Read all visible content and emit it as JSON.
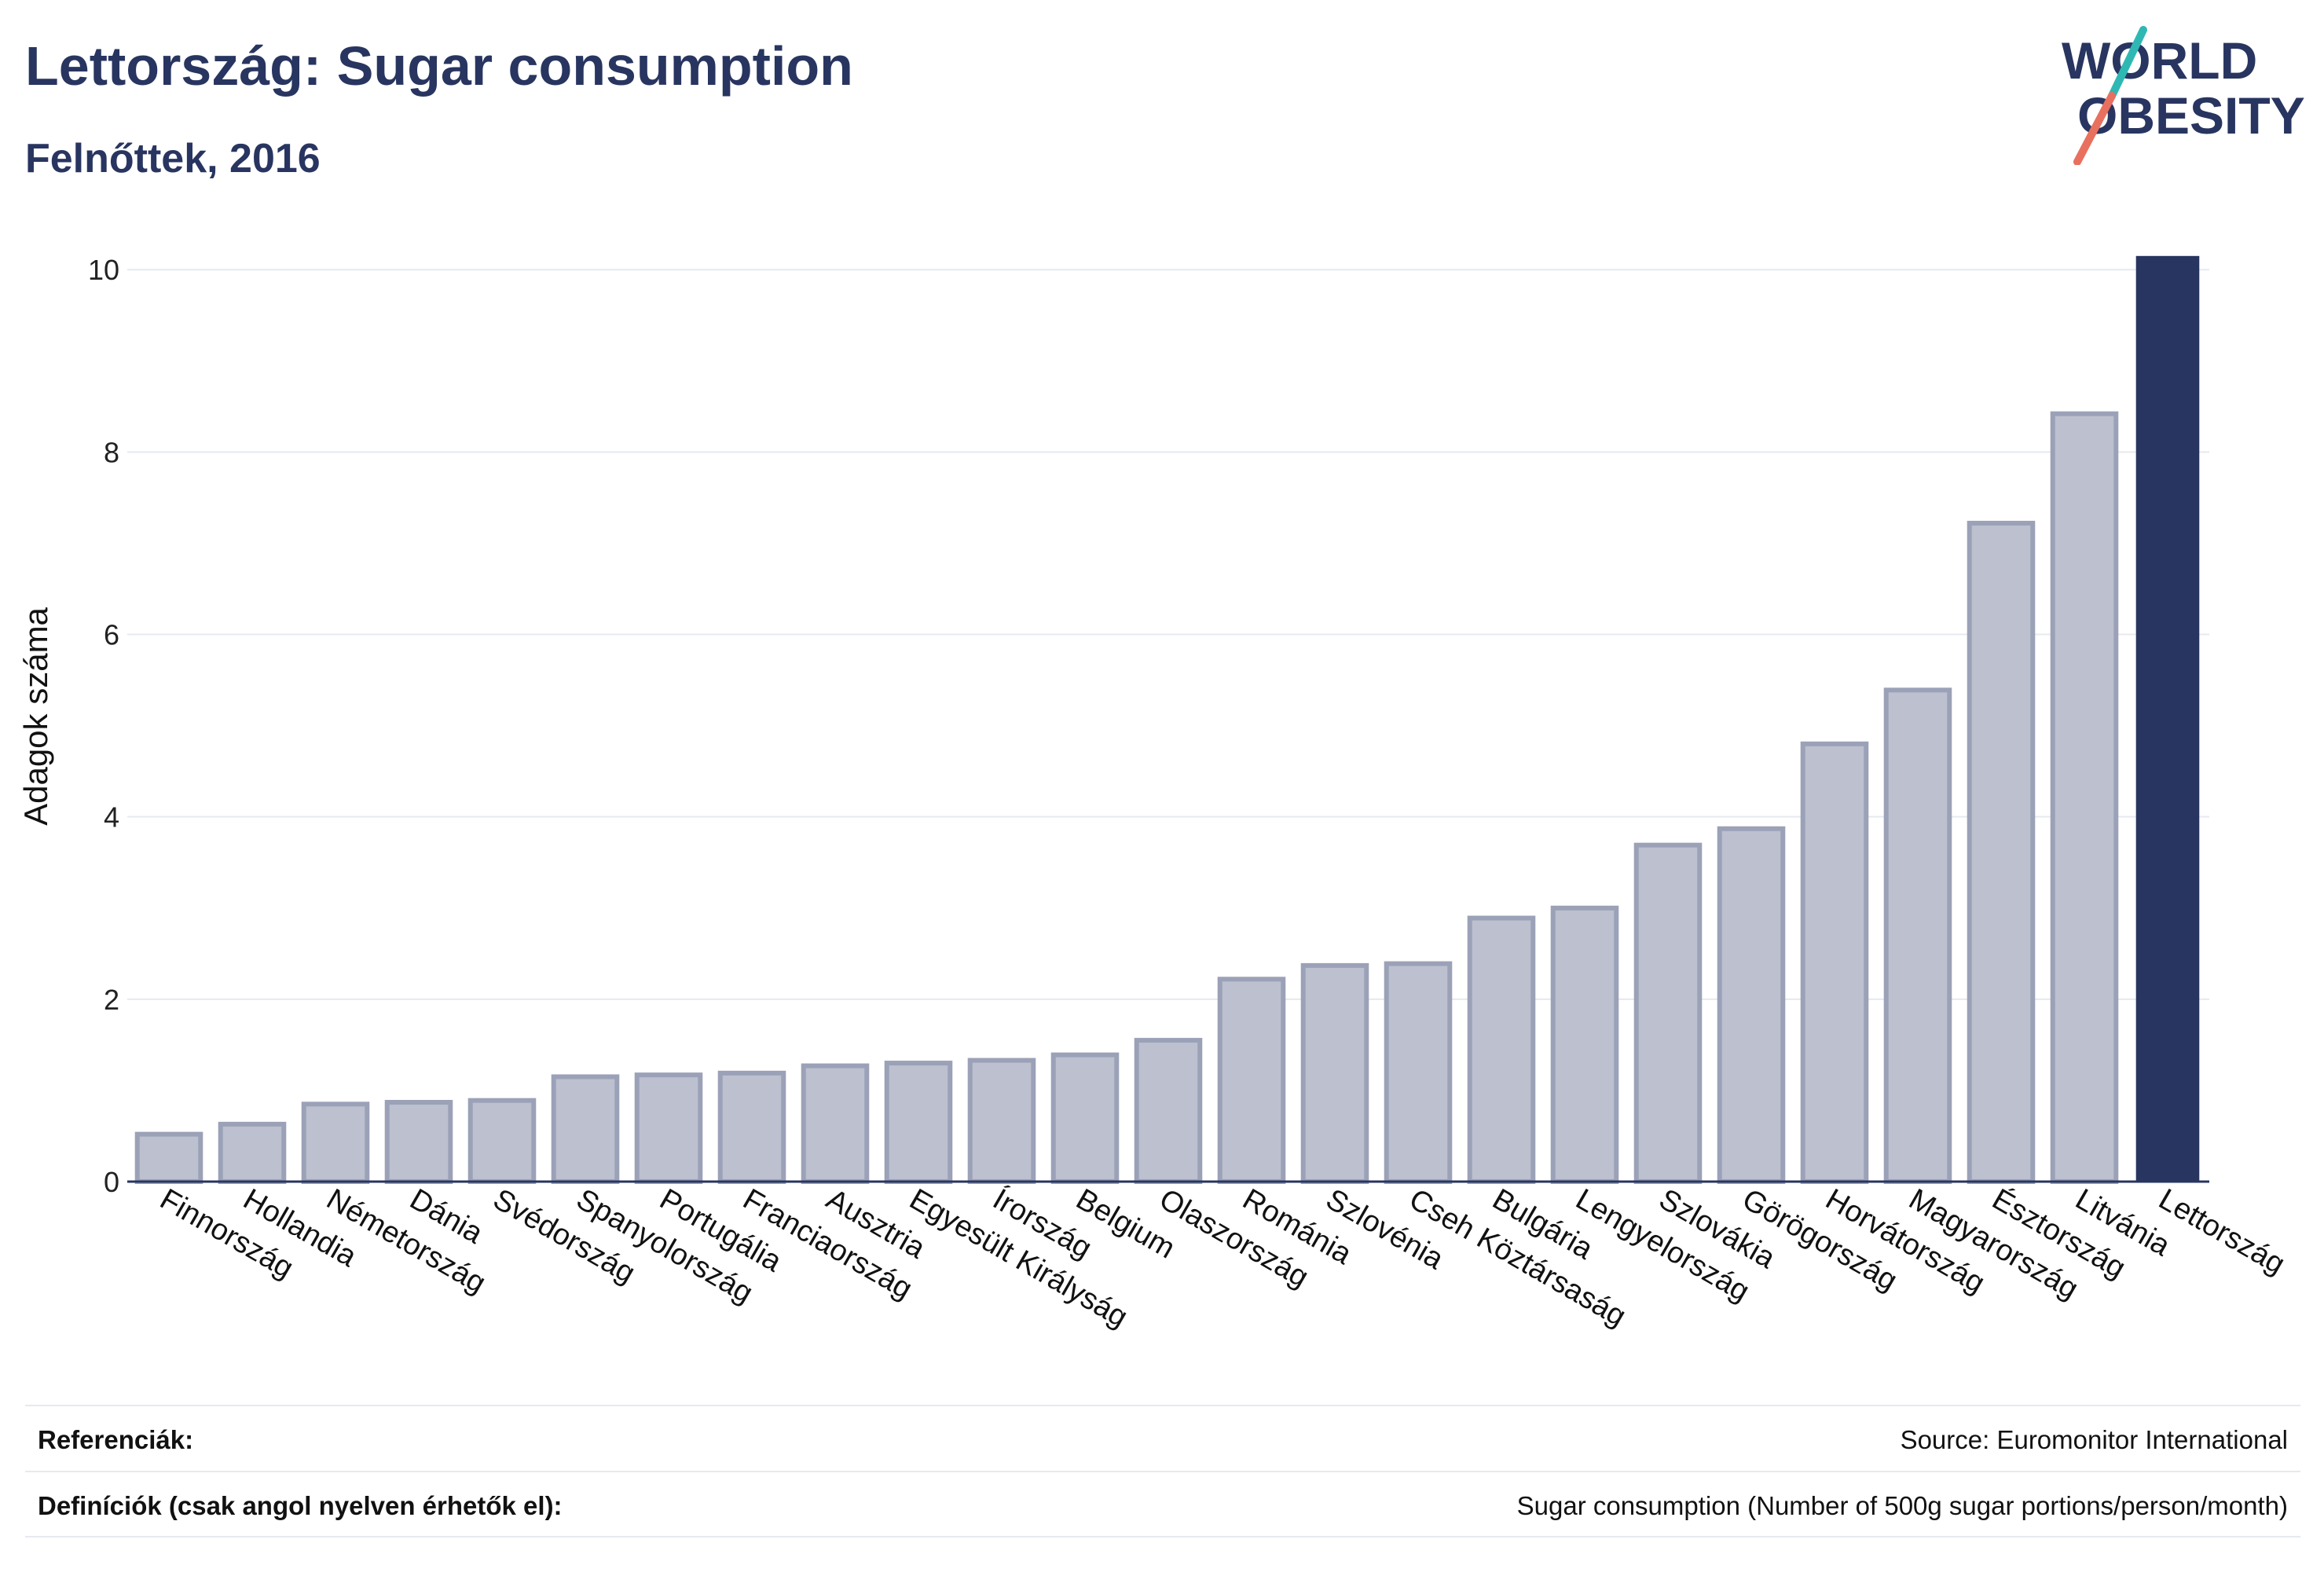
{
  "header": {
    "title": "Lettország: Sugar consumption",
    "subtitle": "Felnőttek, 2016"
  },
  "logo": {
    "line1": "WORLD",
    "line2": "OBESITY",
    "icon": "world-obesity-logo"
  },
  "colors": {
    "accent": "#283560",
    "bar_fill": "#bcc0cf",
    "bar_stroke": "#9ba1b7",
    "grid": "#e6e9ef",
    "logo_teal": "#2fb8b3",
    "logo_coral": "#e8705f"
  },
  "chart_data": {
    "type": "bar",
    "title": "Lettország: Sugar consumption",
    "subtitle": "Felnőttek, 2016",
    "xlabel": "",
    "ylabel": "Adagok száma",
    "ylim": [
      0,
      10.2
    ],
    "yticks": [
      0,
      2,
      4,
      6,
      8,
      10
    ],
    "grid": true,
    "highlight": "Lettország",
    "categories": [
      "Finnország",
      "Hollandia",
      "Németország",
      "Dánia",
      "Svédország",
      "Spanyolország",
      "Portugália",
      "Franciaország",
      "Ausztria",
      "Egyesült Királyság",
      "Írország",
      "Belgium",
      "Olaszország",
      "Románia",
      "Szlovénia",
      "Cseh Köztársaság",
      "Bulgária",
      "Lengyelország",
      "Szlovákia",
      "Görögország",
      "Horvátország",
      "Magyarország",
      "Észtország",
      "Litvánia",
      "Lettország"
    ],
    "values": [
      0.52,
      0.63,
      0.85,
      0.87,
      0.89,
      1.15,
      1.17,
      1.19,
      1.27,
      1.3,
      1.33,
      1.39,
      1.55,
      2.22,
      2.37,
      2.39,
      2.89,
      3.0,
      3.69,
      3.87,
      4.8,
      5.39,
      7.22,
      8.42,
      10.15
    ]
  },
  "footer": {
    "references_label": "Referenciák:",
    "references_value": "Source: Euromonitor International",
    "definitions_label": "Definíciók (csak angol nyelven érhetők el):",
    "definitions_value": "Sugar consumption (Number of 500g sugar portions/person/month)"
  }
}
